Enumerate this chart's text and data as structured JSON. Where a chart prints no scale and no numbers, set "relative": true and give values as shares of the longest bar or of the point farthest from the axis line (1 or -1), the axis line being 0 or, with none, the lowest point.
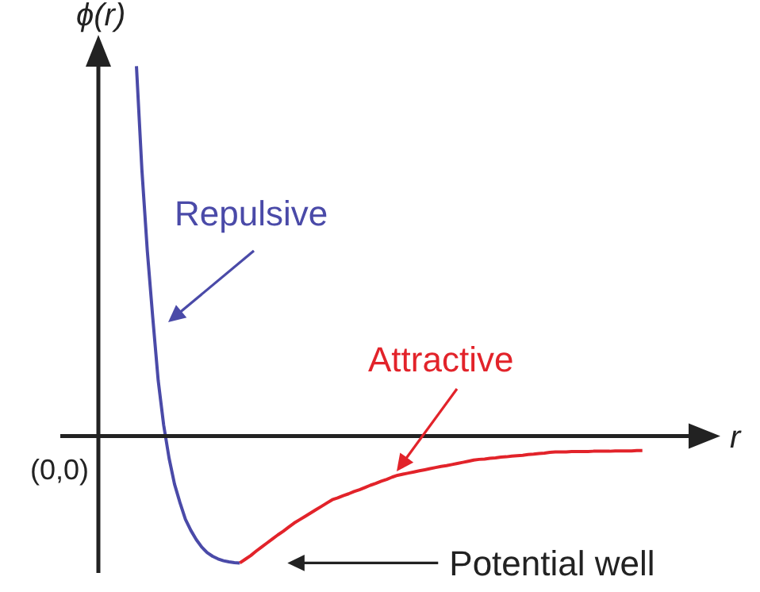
{
  "chart_data": {
    "type": "line",
    "relative": true,
    "xlabel": "r",
    "ylabel": "ϕ(r)",
    "tick_labels": false,
    "grid": false,
    "legend": false,
    "categories": [
      null,
      null,
      null,
      null,
      null,
      null,
      null,
      null,
      null,
      null,
      null,
      null,
      null,
      null,
      null,
      null,
      null,
      null,
      null,
      null,
      null,
      null,
      null,
      null,
      null,
      null,
      null,
      null,
      null,
      null,
      null,
      null,
      null,
      null,
      null,
      null,
      null,
      null,
      null,
      null,
      null,
      null,
      null,
      null,
      null,
      null,
      null,
      null,
      null,
      null,
      null,
      null,
      null,
      null,
      null,
      null,
      null,
      null,
      null,
      null,
      null,
      null,
      null,
      null,
      null,
      null,
      null,
      null,
      null,
      null,
      null,
      null,
      null,
      null,
      null,
      null,
      null,
      null,
      null,
      null,
      null,
      null,
      null,
      null,
      null,
      null,
      null,
      null,
      null,
      null,
      null,
      null,
      null,
      null,
      null,
      null,
      null,
      null,
      null,
      null,
      null,
      null,
      null,
      null,
      null,
      null,
      null,
      null,
      null,
      null,
      null,
      null,
      null
    ],
    "series": [
      {
        "name": "Repulsive",
        "color": "#4a4aa8",
        "values": [
          null,
          null,
          null,
          null,
          null,
          null,
          null,
          1,
          0.72,
          0.5,
          0.32,
          0.15,
          0.03,
          -0.06,
          -0.13,
          -0.18,
          -0.225,
          -0.255,
          -0.28,
          -0.3,
          -0.315,
          -0.325,
          -0.332,
          -0.337,
          -0.34,
          -0.342,
          -0.343,
          null,
          null,
          null,
          null,
          null,
          null,
          null,
          null,
          null,
          null,
          null,
          null,
          null,
          null,
          null,
          null,
          null,
          null,
          null,
          null,
          null,
          null,
          null,
          null,
          null,
          null,
          null,
          null,
          null,
          null,
          null,
          null,
          null,
          null,
          null,
          null,
          null,
          null,
          null,
          null,
          null,
          null,
          null,
          null,
          null,
          null,
          null,
          null,
          null,
          null,
          null,
          null,
          null,
          null,
          null,
          null,
          null,
          null,
          null,
          null,
          null,
          null,
          null,
          null,
          null,
          null,
          null,
          null,
          null,
          null,
          null,
          null,
          null,
          null,
          null,
          null,
          null,
          null,
          null,
          null,
          null,
          null,
          null,
          null,
          null,
          null
        ]
      },
      {
        "name": "Attractive",
        "color": "#e2232a",
        "values": [
          null,
          null,
          null,
          null,
          null,
          null,
          null,
          null,
          null,
          null,
          null,
          null,
          null,
          null,
          null,
          null,
          null,
          null,
          null,
          null,
          null,
          null,
          null,
          null,
          null,
          null,
          -0.343,
          -0.333,
          -0.323,
          -0.311,
          -0.3,
          -0.289,
          -0.278,
          -0.267,
          -0.257,
          -0.246,
          -0.235,
          -0.226,
          -0.217,
          -0.208,
          -0.199,
          -0.19,
          -0.181,
          -0.172,
          -0.167,
          -0.161,
          -0.156,
          -0.15,
          -0.145,
          -0.139,
          -0.133,
          -0.128,
          -0.122,
          -0.117,
          -0.111,
          -0.106,
          -0.103,
          -0.1,
          -0.097,
          -0.094,
          -0.091,
          -0.088,
          -0.085,
          -0.082,
          -0.08,
          -0.077,
          -0.074,
          -0.071,
          -0.068,
          -0.065,
          -0.063,
          -0.062,
          -0.06,
          -0.059,
          -0.057,
          -0.056,
          -0.054,
          -0.053,
          -0.052,
          -0.05,
          -0.049,
          -0.047,
          -0.046,
          -0.044,
          -0.043,
          -0.043,
          -0.043,
          -0.042,
          -0.042,
          -0.042,
          -0.042,
          -0.041,
          -0.041,
          -0.041,
          -0.041,
          -0.04,
          -0.04,
          -0.04,
          -0.04,
          -0.039,
          -0.039,
          null,
          null,
          null,
          null,
          null,
          null,
          null,
          null,
          null,
          null,
          null,
          null
        ]
      }
    ],
    "annotations": [
      "(0,0)",
      "Potential well"
    ]
  }
}
